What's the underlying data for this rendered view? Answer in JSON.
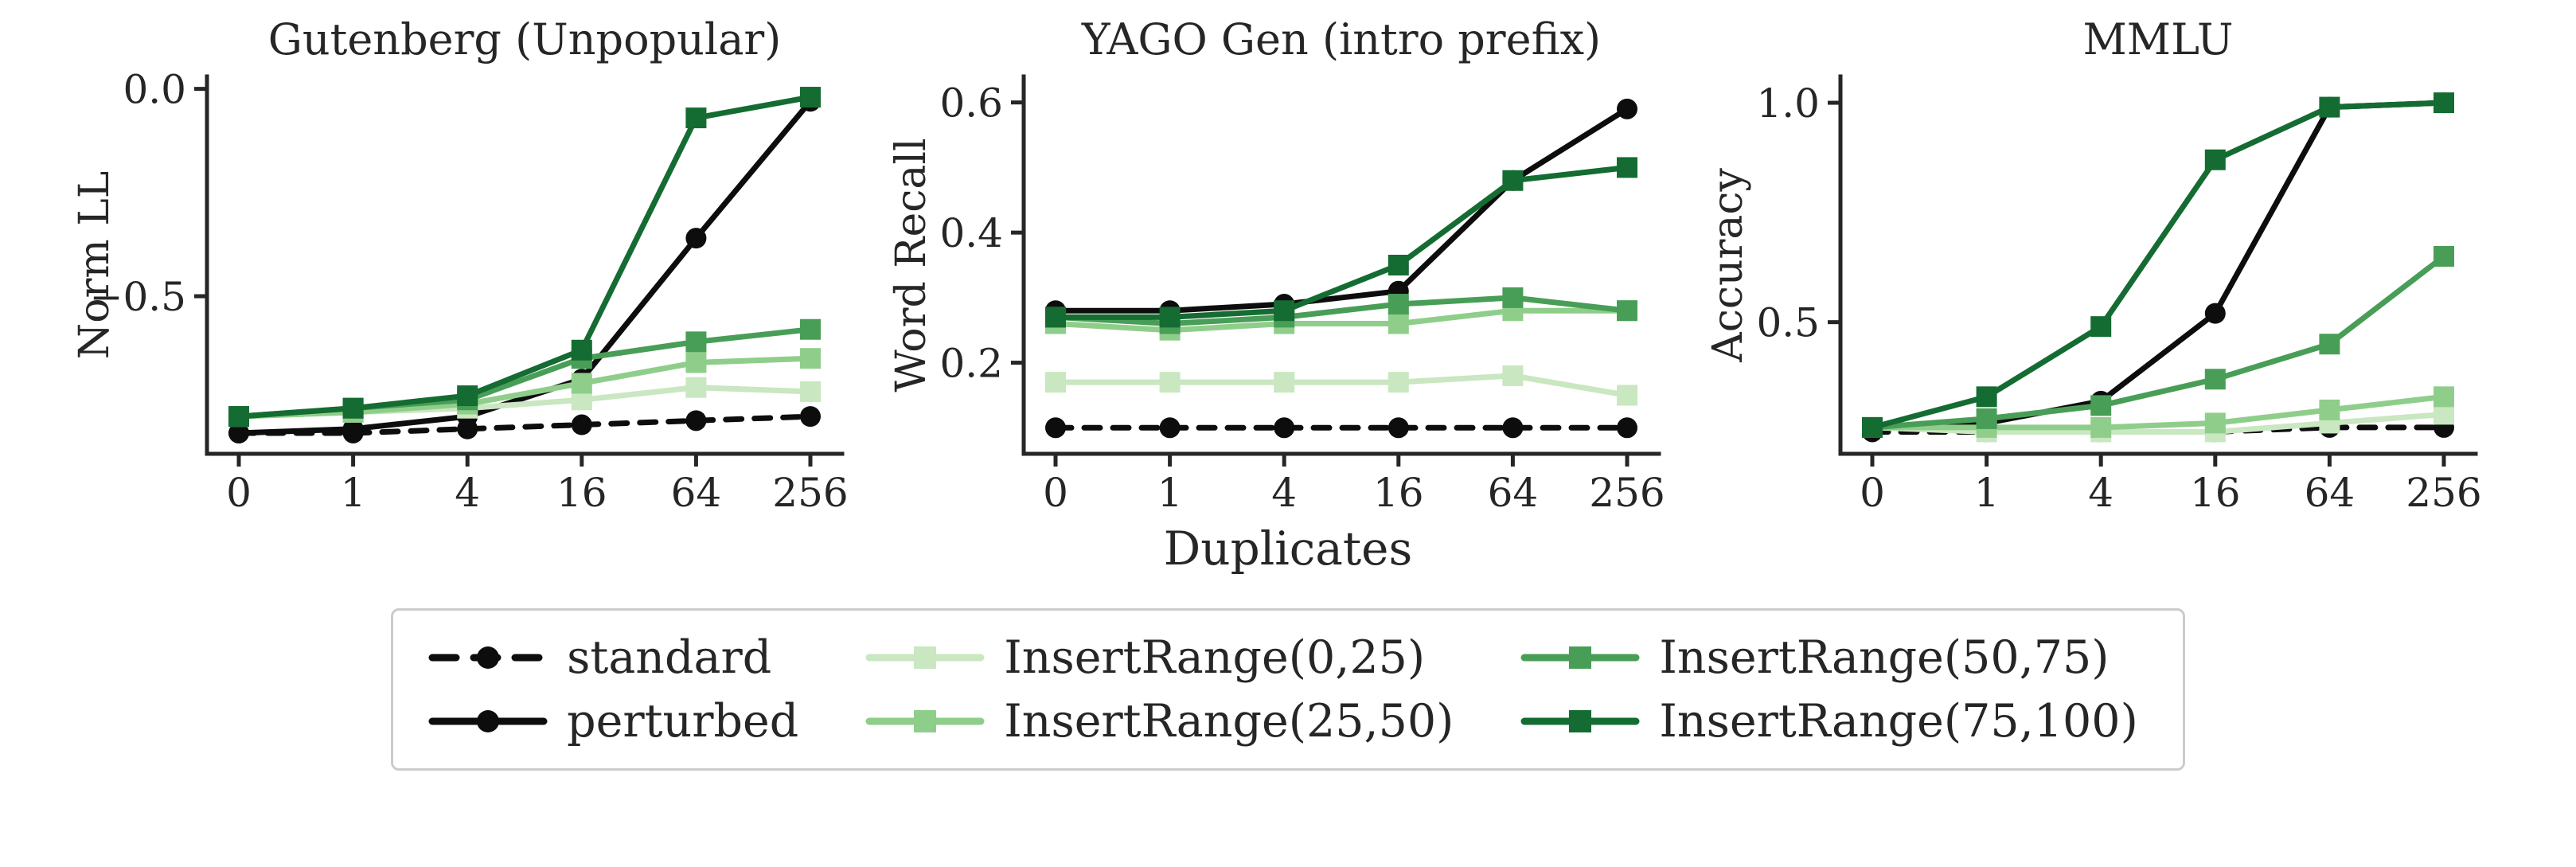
{
  "page": {
    "background": "#ffffff"
  },
  "figure": {
    "xlabel": "Duplicates",
    "x_tick_labels": [
      "0",
      "1",
      "4",
      "16",
      "64",
      "256"
    ],
    "text_color": "#262626",
    "spine_color": "#262626"
  },
  "series_styles": [
    {
      "name": "standard",
      "color": "#0d0d0d",
      "dash": "dashed",
      "marker": "circle"
    },
    {
      "name": "perturbed",
      "color": "#0d0d0d",
      "dash": "solid",
      "marker": "circle"
    },
    {
      "name": "InsertRange(0,25)",
      "color": "#c9e7c0",
      "dash": "solid",
      "marker": "square"
    },
    {
      "name": "InsertRange(25,50)",
      "color": "#8fce8a",
      "dash": "solid",
      "marker": "square"
    },
    {
      "name": "InsertRange(50,75)",
      "color": "#499e57",
      "dash": "solid",
      "marker": "square"
    },
    {
      "name": "InsertRange(75,100)",
      "color": "#146c32",
      "dash": "solid",
      "marker": "square"
    }
  ],
  "legend": {
    "items": [
      "standard",
      "perturbed",
      "InsertRange(0,25)",
      "InsertRange(25,50)",
      "InsertRange(50,75)",
      "InsertRange(75,100)"
    ]
  },
  "chart_data": [
    {
      "type": "line",
      "title": "Gutenberg (Unpopular)",
      "ylabel": "Norm LL",
      "xlabel": "",
      "x": [
        0,
        1,
        4,
        16,
        64,
        256
      ],
      "ylim": [
        -0.88,
        0.03
      ],
      "yticks": [
        {
          "value": 0.0,
          "label": "0.0"
        },
        {
          "value": -0.5,
          "label": "−0.5"
        }
      ],
      "grid": false,
      "series": [
        {
          "name": "standard",
          "values": [
            -0.83,
            -0.83,
            -0.82,
            -0.81,
            -0.8,
            -0.79
          ]
        },
        {
          "name": "perturbed",
          "values": [
            -0.83,
            -0.82,
            -0.79,
            -0.7,
            -0.36,
            -0.03
          ]
        },
        {
          "name": "InsertRange(0,25)",
          "values": [
            -0.79,
            -0.78,
            -0.77,
            -0.75,
            -0.72,
            -0.73
          ]
        },
        {
          "name": "InsertRange(25,50)",
          "values": [
            -0.79,
            -0.78,
            -0.76,
            -0.71,
            -0.66,
            -0.65
          ]
        },
        {
          "name": "InsertRange(50,75)",
          "values": [
            -0.79,
            -0.77,
            -0.75,
            -0.65,
            -0.61,
            -0.58
          ]
        },
        {
          "name": "InsertRange(75,100)",
          "values": [
            -0.79,
            -0.77,
            -0.74,
            -0.63,
            -0.07,
            -0.02
          ]
        }
      ]
    },
    {
      "type": "line",
      "title": "YAGO Gen (intro prefix)",
      "ylabel": "Word Recall",
      "xlabel": "Duplicates",
      "x": [
        0,
        1,
        4,
        16,
        64,
        256
      ],
      "ylim": [
        0.06,
        0.64
      ],
      "yticks": [
        {
          "value": 0.6,
          "label": "0.6"
        },
        {
          "value": 0.4,
          "label": "0.4"
        },
        {
          "value": 0.2,
          "label": "0.2"
        }
      ],
      "grid": false,
      "series": [
        {
          "name": "standard",
          "values": [
            0.1,
            0.1,
            0.1,
            0.1,
            0.1,
            0.1
          ]
        },
        {
          "name": "perturbed",
          "values": [
            0.28,
            0.28,
            0.29,
            0.31,
            0.48,
            0.59
          ]
        },
        {
          "name": "InsertRange(0,25)",
          "values": [
            0.17,
            0.17,
            0.17,
            0.17,
            0.18,
            0.15
          ]
        },
        {
          "name": "InsertRange(25,50)",
          "values": [
            0.26,
            0.25,
            0.26,
            0.26,
            0.28,
            0.28
          ]
        },
        {
          "name": "InsertRange(50,75)",
          "values": [
            0.27,
            0.26,
            0.27,
            0.29,
            0.3,
            0.28
          ]
        },
        {
          "name": "InsertRange(75,100)",
          "values": [
            0.27,
            0.27,
            0.28,
            0.35,
            0.48,
            0.5
          ]
        }
      ]
    },
    {
      "type": "line",
      "title": "MMLU",
      "ylabel": "Accuracy",
      "xlabel": "",
      "x": [
        0,
        1,
        4,
        16,
        64,
        256
      ],
      "ylim": [
        0.2,
        1.06
      ],
      "yticks": [
        {
          "value": 1.0,
          "label": "1.0"
        },
        {
          "value": 0.5,
          "label": "0.5"
        }
      ],
      "grid": false,
      "series": [
        {
          "name": "standard",
          "values": [
            0.25,
            0.25,
            0.25,
            0.25,
            0.26,
            0.26
          ]
        },
        {
          "name": "perturbed",
          "values": [
            0.26,
            0.27,
            0.32,
            0.52,
            0.99,
            1.0
          ]
        },
        {
          "name": "InsertRange(0,25)",
          "values": [
            0.26,
            0.25,
            0.25,
            0.25,
            0.27,
            0.29
          ]
        },
        {
          "name": "InsertRange(25,50)",
          "values": [
            0.26,
            0.26,
            0.26,
            0.27,
            0.3,
            0.33
          ]
        },
        {
          "name": "InsertRange(50,75)",
          "values": [
            0.26,
            0.28,
            0.31,
            0.37,
            0.45,
            0.65
          ]
        },
        {
          "name": "InsertRange(75,100)",
          "values": [
            0.26,
            0.33,
            0.49,
            0.87,
            0.99,
            1.0
          ]
        }
      ]
    }
  ]
}
